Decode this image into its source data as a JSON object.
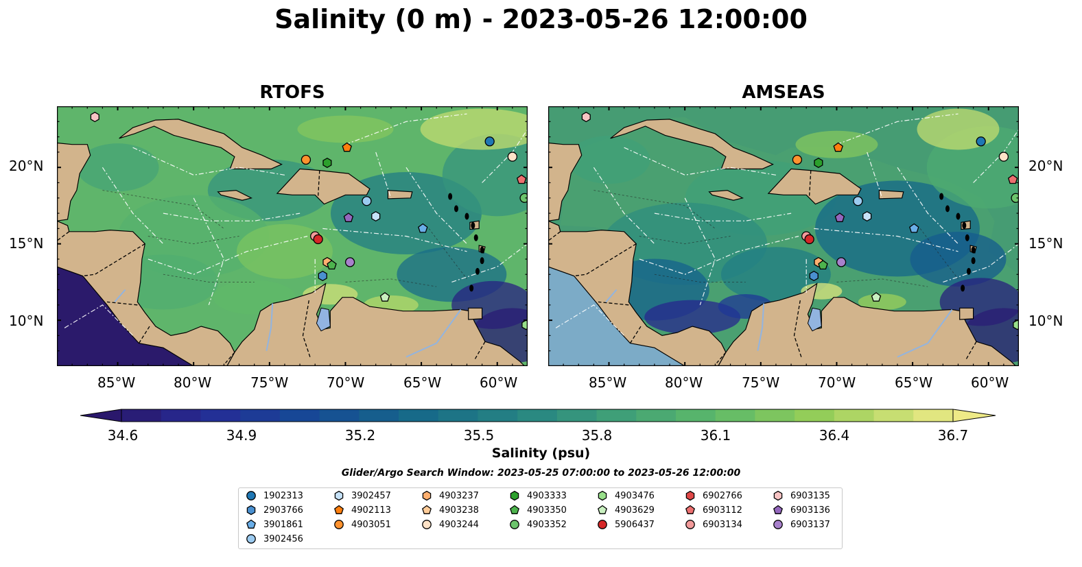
{
  "title": "Salinity (0 m) - 2023-05-26 12:00:00",
  "panels": [
    {
      "title": "RTOFS"
    },
    {
      "title": "AMSEAS"
    }
  ],
  "lat_labels": [
    "20°N",
    "15°N",
    "10°N"
  ],
  "lon_labels": [
    "85°W",
    "80°W",
    "75°W",
    "70°W",
    "65°W",
    "60°W"
  ],
  "colorbar": {
    "label": "Salinity (psu)",
    "ticks": [
      "34.6",
      "34.9",
      "35.2",
      "35.5",
      "35.8",
      "36.1",
      "36.4",
      "36.7"
    ],
    "colormap": "haline",
    "extend": "both"
  },
  "search_window": "Glider/Argo Search Window: 2023-05-25 07:00:00 to 2023-05-26 12:00:00",
  "legend": [
    {
      "id": "1902313",
      "marker": "circle",
      "color": "#1f77b4"
    },
    {
      "id": "2903766",
      "marker": "hexagon",
      "color": "#4a90d0"
    },
    {
      "id": "3901861",
      "marker": "pentagon",
      "color": "#6aaee8"
    },
    {
      "id": "3902456",
      "marker": "circle",
      "color": "#9ccbf0"
    },
    {
      "id": "3902457",
      "marker": "hexagon",
      "color": "#c6e2f8"
    },
    {
      "id": "4902113",
      "marker": "pentagon",
      "color": "#ff7f0e"
    },
    {
      "id": "4903051",
      "marker": "circle",
      "color": "#ff922e"
    },
    {
      "id": "4903237",
      "marker": "hexagon",
      "color": "#ffb070"
    },
    {
      "id": "4903238",
      "marker": "pentagon",
      "color": "#ffcc99"
    },
    {
      "id": "4903244",
      "marker": "circle",
      "color": "#ffe3c8"
    },
    {
      "id": "4903333",
      "marker": "hexagon",
      "color": "#2ca02c"
    },
    {
      "id": "4903350",
      "marker": "pentagon",
      "color": "#4db34d"
    },
    {
      "id": "4903352",
      "marker": "circle",
      "color": "#6cc46c"
    },
    {
      "id": "4903476",
      "marker": "hexagon",
      "color": "#98df8a"
    },
    {
      "id": "4903629",
      "marker": "pentagon",
      "color": "#c9f0c0"
    },
    {
      "id": "5906437",
      "marker": "circle",
      "color": "#d62728"
    },
    {
      "id": "6902766",
      "marker": "hexagon",
      "color": "#e04848"
    },
    {
      "id": "6903112",
      "marker": "pentagon",
      "color": "#ec7070"
    },
    {
      "id": "6903134",
      "marker": "circle",
      "color": "#f29a9a"
    },
    {
      "id": "6903135",
      "marker": "hexagon",
      "color": "#f8c4c4"
    },
    {
      "id": "6903136",
      "marker": "pentagon",
      "color": "#9467bd"
    },
    {
      "id": "6903137",
      "marker": "circle",
      "color": "#a881cc"
    }
  ],
  "chart_data": {
    "type": "heatmap",
    "variable": "Salinity (0 m)",
    "units": "psu",
    "vmin": 34.6,
    "vmax": 36.7,
    "lon_range": [
      -89,
      -58
    ],
    "lat_range": [
      7,
      24
    ],
    "floats": [
      {
        "id": "1902313",
        "lon": -60.5,
        "lat": 21.7
      },
      {
        "id": "6903135",
        "lon": -86.5,
        "lat": 23.3
      },
      {
        "id": "4902113",
        "lon": -69.9,
        "lat": 21.3
      },
      {
        "id": "4903051",
        "lon": -72.6,
        "lat": 20.5
      },
      {
        "id": "4903333",
        "lon": -71.2,
        "lat": 20.3
      },
      {
        "id": "4903244",
        "lon": -59.0,
        "lat": 20.7
      },
      {
        "id": "6903112",
        "lon": -58.4,
        "lat": 19.2
      },
      {
        "id": "4903352",
        "lon": -58.2,
        "lat": 18.0
      },
      {
        "id": "3902456",
        "lon": -68.6,
        "lat": 17.8
      },
      {
        "id": "3902457",
        "lon": -68.0,
        "lat": 16.8
      },
      {
        "id": "6903136",
        "lon": -69.8,
        "lat": 16.7
      },
      {
        "id": "3901861",
        "lon": -64.9,
        "lat": 16.0
      },
      {
        "id": "6903134",
        "lon": -72.0,
        "lat": 15.5
      },
      {
        "id": "5906437",
        "lon": -71.8,
        "lat": 15.3
      },
      {
        "id": "4903237",
        "lon": -71.2,
        "lat": 13.8
      },
      {
        "id": "4903350",
        "lon": -70.9,
        "lat": 13.6
      },
      {
        "id": "6903137",
        "lon": -69.7,
        "lat": 13.8
      },
      {
        "id": "2903766",
        "lon": -71.5,
        "lat": 12.9
      },
      {
        "id": "4903629",
        "lon": -67.4,
        "lat": 11.5
      },
      {
        "id": "4903476",
        "lon": -58.1,
        "lat": 9.7
      }
    ]
  }
}
